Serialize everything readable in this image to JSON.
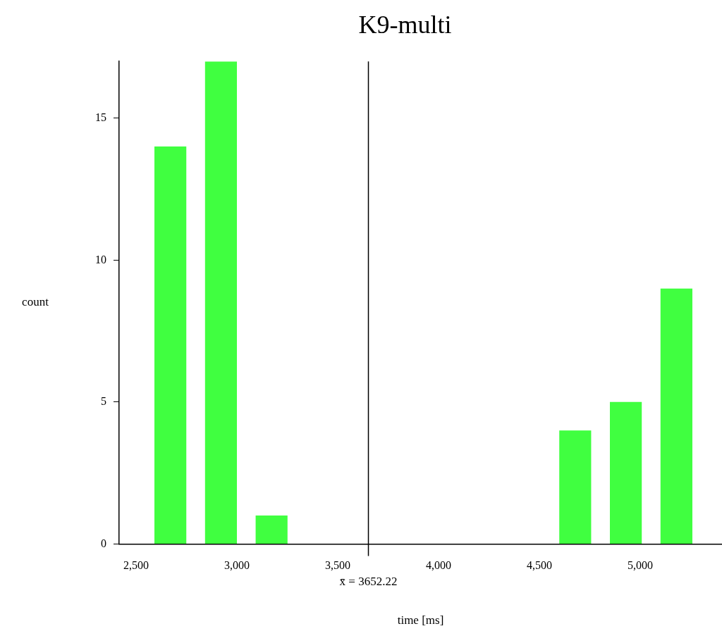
{
  "chart_data": {
    "type": "bar",
    "title": "K9-multi",
    "xlabel": "time [ms]",
    "ylabel": "count",
    "x": [
      2670,
      2921,
      3172,
      3423,
      3674,
      3925,
      4176,
      4427,
      4678,
      4929,
      5180
    ],
    "series": [
      {
        "color": "#40ff40",
        "values": [
          14,
          17,
          1,
          0,
          0,
          0,
          0,
          0,
          4,
          5,
          9
        ]
      }
    ],
    "xlim": [
      2416,
      5406
    ],
    "xticks": [
      {
        "value": 2500,
        "label": "2,500"
      },
      {
        "value": 3000,
        "label": "3,000"
      },
      {
        "value": 3500,
        "label": "3,500"
      },
      {
        "value": 4000,
        "label": "4,000"
      },
      {
        "value": 4500,
        "label": "4,500"
      },
      {
        "value": 5000,
        "label": "5,000"
      }
    ],
    "ylim": [
      0,
      17
    ],
    "yticks": [
      0,
      5,
      10,
      15
    ],
    "ref_lines": [
      {
        "axis": "x",
        "value": 3652.22,
        "label": "x̄ = 3652.22"
      }
    ],
    "grid": false,
    "legend": false
  }
}
